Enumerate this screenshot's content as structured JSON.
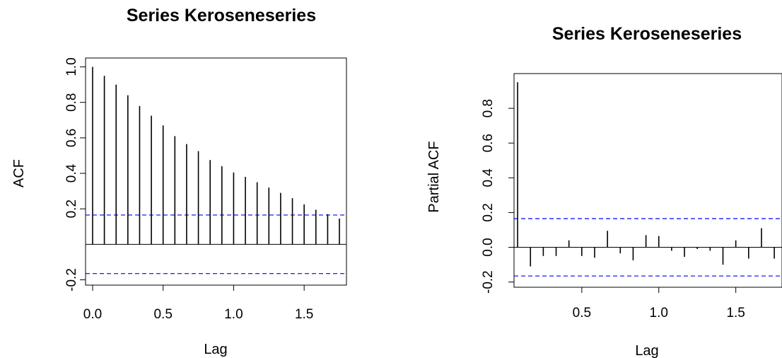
{
  "chart_data": [
    {
      "type": "bar",
      "title": "Series  Keroseneseries",
      "xlabel": "Lag",
      "ylabel": "ACF",
      "xlim": [
        -0.05,
        1.8
      ],
      "ylim": [
        -0.23,
        1.05
      ],
      "x_ticks": [
        {
          "value": 0.0,
          "label": "0.0"
        },
        {
          "value": 0.5,
          "label": "0.5"
        },
        {
          "value": 1.0,
          "label": "1.0"
        },
        {
          "value": 1.5,
          "label": "1.5"
        }
      ],
      "y_ticks": [
        {
          "value": -0.2,
          "label": "-0.2"
        },
        {
          "value": 0.2,
          "label": "0.2"
        },
        {
          "value": 0.4,
          "label": "0.4"
        },
        {
          "value": 0.6,
          "label": "0.6"
        },
        {
          "value": 0.8,
          "label": "0.8"
        },
        {
          "value": 1.0,
          "label": "1.0"
        }
      ],
      "confidence_bounds": [
        0.165,
        -0.165
      ],
      "lags": [
        0.0,
        0.0833,
        0.1667,
        0.25,
        0.3333,
        0.4167,
        0.5,
        0.5833,
        0.6667,
        0.75,
        0.8333,
        0.9167,
        1.0,
        1.0833,
        1.1667,
        1.25,
        1.3333,
        1.4167,
        1.5,
        1.5833,
        1.6667,
        1.75
      ],
      "values": [
        1.0,
        0.95,
        0.9,
        0.84,
        0.78,
        0.725,
        0.67,
        0.61,
        0.565,
        0.525,
        0.475,
        0.44,
        0.405,
        0.38,
        0.35,
        0.32,
        0.29,
        0.26,
        0.225,
        0.195,
        0.17,
        0.145
      ],
      "colors": {
        "lines": "#000000",
        "bounds": "#0000ff"
      }
    },
    {
      "type": "bar",
      "title": "Series  Keroseneseries",
      "xlabel": "Lag",
      "ylabel": "Partial ACF",
      "xlim": [
        0.06,
        1.8
      ],
      "ylim": [
        -0.23,
        1.0
      ],
      "x_ticks": [
        {
          "value": 0.5,
          "label": "0.5"
        },
        {
          "value": 1.0,
          "label": "1.0"
        },
        {
          "value": 1.5,
          "label": "1.5"
        }
      ],
      "y_ticks": [
        {
          "value": -0.2,
          "label": "-0.2"
        },
        {
          "value": 0.0,
          "label": "0.0"
        },
        {
          "value": 0.2,
          "label": "0.2"
        },
        {
          "value": 0.4,
          "label": "0.4"
        },
        {
          "value": 0.6,
          "label": "0.6"
        },
        {
          "value": 0.8,
          "label": "0.8"
        }
      ],
      "confidence_bounds": [
        0.165,
        -0.165
      ],
      "lags": [
        0.0833,
        0.1667,
        0.25,
        0.3333,
        0.4167,
        0.5,
        0.5833,
        0.6667,
        0.75,
        0.8333,
        0.9167,
        1.0,
        1.0833,
        1.1667,
        1.25,
        1.3333,
        1.4167,
        1.5,
        1.5833,
        1.6667,
        1.75
      ],
      "values": [
        0.95,
        -0.11,
        -0.05,
        -0.05,
        0.04,
        -0.05,
        -0.06,
        0.095,
        -0.035,
        -0.075,
        0.07,
        0.065,
        -0.02,
        -0.055,
        -0.01,
        -0.02,
        -0.1,
        0.04,
        -0.065,
        0.11,
        -0.065
      ],
      "colors": {
        "lines": "#000000",
        "bounds": "#0000ff"
      }
    }
  ]
}
